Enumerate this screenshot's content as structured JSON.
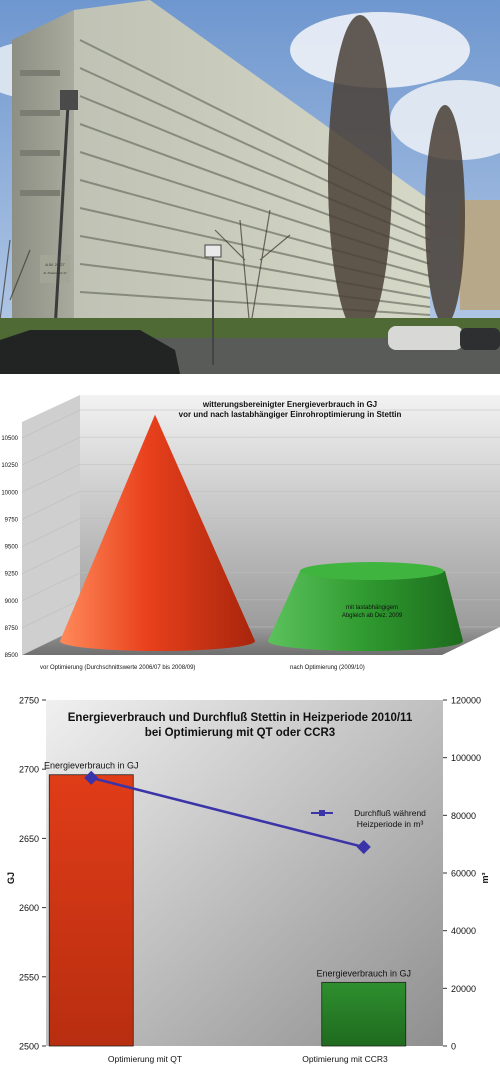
{
  "photo": {
    "sign_text": [
      "A.W. 26/27",
      "Al. Piastów 10-17"
    ]
  },
  "chart_data": [
    {
      "type": "bar",
      "style": "3d-cone",
      "title": "witterungsbereinigter Energieverbrauch in GJ",
      "subtitle": "vor und nach lastabhängiger Einrohroptimierung in Stettin",
      "categories": [
        "vor Optimierung (Durchschnittswerte 2006/07 bis 2008/09)",
        "nach Optimierung (2009/10)"
      ],
      "values": [
        10550,
        9200
      ],
      "colors": [
        "#e8401c",
        "#2f9a2f"
      ],
      "annotation": "mit lastabhängigem\nAbgleich ab Dez. 2009",
      "ylim": [
        8500,
        10500
      ],
      "yticks": [
        8500,
        8750,
        9000,
        9250,
        9500,
        9750,
        10000,
        10250,
        10500
      ],
      "grid": true
    },
    {
      "type": "bar",
      "title": "Energieverbrauch und Durchfluß Stettin in Heizperiode 2010/11",
      "subtitle": "bei Optimierung mit QT oder CCR3",
      "categories": [
        "Optimierung mit QT",
        "Optimierung mit CCR3"
      ],
      "ylabel": "GJ",
      "ylabel_right": "m³",
      "ylim": [
        2500,
        2750
      ],
      "yticks": [
        2500,
        2550,
        2600,
        2650,
        2700,
        2750
      ],
      "ylim_right": [
        0,
        120000
      ],
      "yticks_right": [
        0,
        20000,
        40000,
        60000,
        80000,
        100000,
        120000
      ],
      "series": [
        {
          "name": "Energieverbrauch in GJ",
          "type": "bar",
          "axis": "left",
          "values": [
            2696,
            2546
          ],
          "colors": [
            "#e03c18",
            "#2e8f2e"
          ]
        },
        {
          "name": "Durchfluß während Heizperiode in m³",
          "type": "line",
          "axis": "right",
          "values": [
            93000,
            69000
          ],
          "color": "#3a34a8"
        }
      ],
      "bar_labels": [
        "Energieverbrauch in GJ",
        "Energieverbrauch in GJ"
      ],
      "legend": "right",
      "grid": false
    }
  ]
}
